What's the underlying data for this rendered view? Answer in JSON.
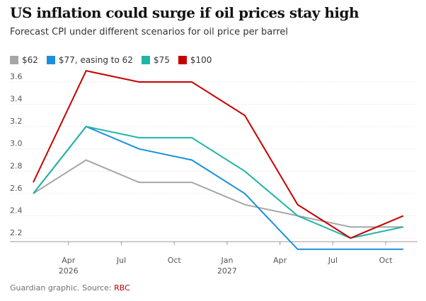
{
  "header": {
    "title": "US inflation could surge if oil prices stay high",
    "subtitle": "Forecast CPI under different scenarios for oil price per barrel"
  },
  "footer": {
    "source_prefix": "Guardian graphic. Source: ",
    "source_link": "RBC"
  },
  "chart_data": {
    "type": "line",
    "title": "US inflation could surge if oil prices stay high",
    "subtitle": "Forecast CPI under different scenarios for oil price per barrel",
    "xlabel": "",
    "ylabel": "",
    "x": [
      "2026-02",
      "2026-05",
      "2026-08",
      "2026-11",
      "2027-02",
      "2027-05",
      "2027-08",
      "2027-11"
    ],
    "x_ticks": [
      {
        "label": "Apr",
        "sublabel": "2026",
        "date": "2026-04"
      },
      {
        "label": "Jul",
        "sublabel": "",
        "date": "2026-07"
      },
      {
        "label": "Oct",
        "sublabel": "",
        "date": "2026-10"
      },
      {
        "label": "Jan",
        "sublabel": "2027",
        "date": "2027-01"
      },
      {
        "label": "Apr",
        "sublabel": "",
        "date": "2027-04"
      },
      {
        "label": "Jul",
        "sublabel": "",
        "date": "2027-07"
      },
      {
        "label": "Oct",
        "sublabel": "",
        "date": "2027-10"
      }
    ],
    "y_ticks": [
      2.2,
      2.4,
      2.6,
      2.8,
      3.0,
      3.2,
      3.4,
      3.6
    ],
    "ylim": [
      2.05,
      3.72
    ],
    "grid": true,
    "legend_position": "top-left",
    "series": [
      {
        "name": "$62",
        "color": "#a6a6a6",
        "values": [
          2.6,
          2.9,
          2.7,
          2.7,
          2.5,
          2.4,
          2.3,
          2.3
        ]
      },
      {
        "name": "$77, easing to 62",
        "color": "#1a8fdd",
        "values": [
          2.6,
          3.2,
          3.0,
          2.9,
          2.6,
          2.1,
          2.1,
          2.1
        ]
      },
      {
        "name": "$75",
        "color": "#1fb5a6",
        "values": [
          2.6,
          3.2,
          3.1,
          3.1,
          2.8,
          2.4,
          2.2,
          2.3
        ]
      },
      {
        "name": "$100",
        "color": "#c70000",
        "values": [
          2.7,
          3.7,
          3.6,
          3.6,
          3.3,
          2.5,
          2.2,
          2.4
        ]
      }
    ]
  }
}
